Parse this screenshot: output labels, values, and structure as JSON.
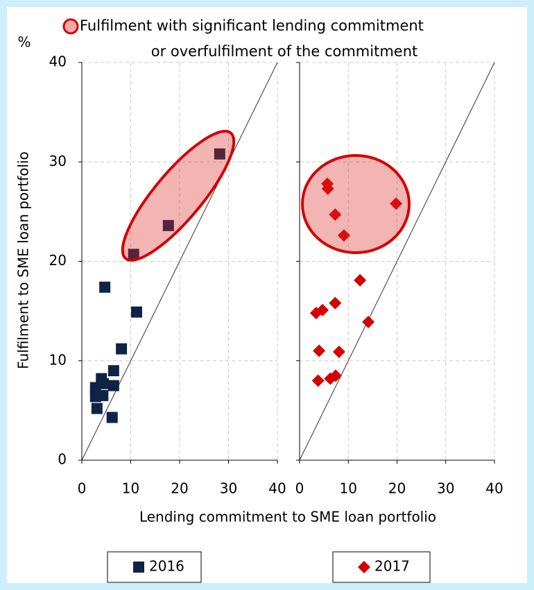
{
  "annotation": [
    "Fulfilment with significant lending commitment",
    "or overfulfilment of the commitment"
  ],
  "yunit": "%",
  "ylabel": "Fulfilment to SME loan portfolio",
  "xlabel": "Lending commitment to SME loan portfolio",
  "chart_data": [
    {
      "type": "scatter",
      "xlim": [
        0,
        40
      ],
      "xticks": [
        0,
        10,
        20,
        30,
        40
      ],
      "ylim": [
        0,
        40
      ],
      "yticks": [
        0,
        10,
        20,
        30,
        40
      ],
      "show_ytick_labels": true,
      "grid": true,
      "series": [
        {
          "name": "2016",
          "color": "#0f2347",
          "marker": "square",
          "x": [
            10.6,
            17.7,
            28.2,
            4.7,
            11.2,
            8.1,
            6.5,
            6.5,
            4.0,
            4.4,
            2.8,
            2.8,
            4.3,
            3.1,
            6.2
          ],
          "values": [
            20.7,
            23.6,
            30.8,
            17.4,
            14.9,
            11.2,
            9.0,
            7.5,
            8.2,
            7.7,
            7.3,
            6.4,
            6.5,
            5.2,
            4.3
          ]
        }
      ]
    },
    {
      "type": "scatter",
      "xlim": [
        0,
        40
      ],
      "xticks": [
        0,
        10,
        20,
        30,
        40
      ],
      "ylim": [
        0,
        40
      ],
      "yticks": [
        0,
        10,
        20,
        30,
        40
      ],
      "show_ytick_labels": false,
      "grid": true,
      "series": [
        {
          "name": "2017",
          "color": "#d40000",
          "marker": "diamond",
          "x": [
            5.7,
            5.8,
            7.3,
            9.1,
            19.8,
            12.4,
            14.1,
            7.3,
            4.7,
            3.4,
            4.0,
            8.1,
            7.4,
            6.3,
            3.8
          ],
          "values": [
            27.8,
            27.3,
            24.7,
            22.6,
            25.8,
            18.1,
            13.9,
            15.8,
            15.1,
            14.8,
            11.0,
            10.9,
            8.5,
            8.2,
            8.0
          ]
        }
      ]
    }
  ]
}
